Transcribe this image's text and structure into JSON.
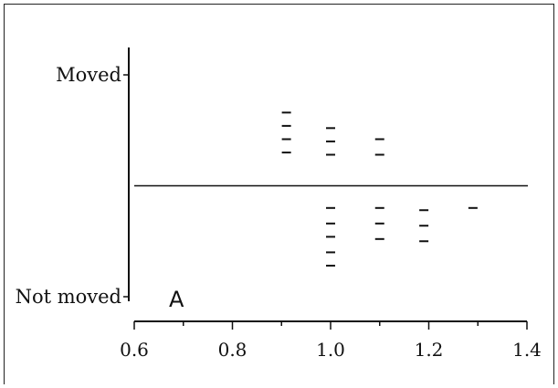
{
  "chart_data": {
    "type": "scatter",
    "panel_label": "A",
    "y_categories": [
      "Not moved",
      "Moved"
    ],
    "xlim": [
      0.6,
      1.4
    ],
    "x_tick_labels": [
      "0.6",
      "0.8",
      "1.0",
      "1.2",
      "1.4"
    ],
    "x_ticks": [
      0.6,
      0.8,
      1.0,
      1.2,
      1.4
    ],
    "x_minor_ticks": [
      0.7,
      0.9,
      1.1,
      1.3
    ],
    "reference_line_y": 0.5,
    "series": [
      {
        "group": "Moved",
        "points": [
          {
            "x": 0.91,
            "y": 0.83
          },
          {
            "x": 0.91,
            "y": 0.77
          },
          {
            "x": 0.91,
            "y": 0.71
          },
          {
            "x": 0.91,
            "y": 0.65
          },
          {
            "x": 1.0,
            "y": 0.76
          },
          {
            "x": 1.0,
            "y": 0.7
          },
          {
            "x": 1.0,
            "y": 0.64
          },
          {
            "x": 1.1,
            "y": 0.71
          },
          {
            "x": 1.1,
            "y": 0.64
          }
        ]
      },
      {
        "group": "Not moved",
        "points": [
          {
            "x": 1.0,
            "y": 0.4
          },
          {
            "x": 1.0,
            "y": 0.33
          },
          {
            "x": 1.0,
            "y": 0.27
          },
          {
            "x": 1.0,
            "y": 0.2
          },
          {
            "x": 1.0,
            "y": 0.14
          },
          {
            "x": 1.1,
            "y": 0.4
          },
          {
            "x": 1.1,
            "y": 0.33
          },
          {
            "x": 1.1,
            "y": 0.26
          },
          {
            "x": 1.19,
            "y": 0.39
          },
          {
            "x": 1.19,
            "y": 0.32
          },
          {
            "x": 1.19,
            "y": 0.25
          },
          {
            "x": 1.29,
            "y": 0.4
          }
        ]
      }
    ]
  }
}
